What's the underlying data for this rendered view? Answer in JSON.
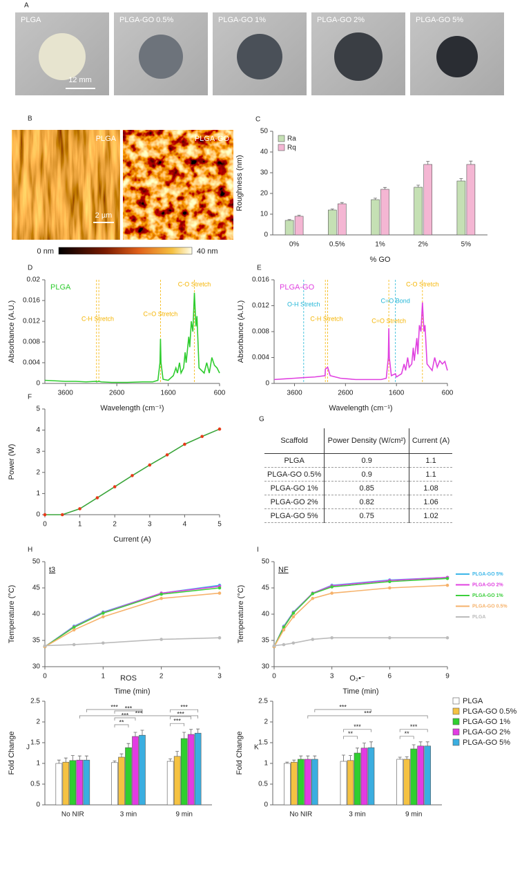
{
  "photos": {
    "panel": "A",
    "labels": [
      "PLGA",
      "PLGA-GO 0.5%",
      "PLGA-GO 1%",
      "PLGA-GO 2%",
      "PLGA-GO 5%"
    ],
    "scale": "12 mm"
  },
  "afm": {
    "panel": "B",
    "labels": [
      "PLGA",
      "PLGA-GO"
    ],
    "scale": "2 µm",
    "colorbar": [
      "0 nm",
      "40 nm"
    ]
  },
  "table": {
    "panel": "G",
    "header": [
      "Scaffold",
      "Power Density (W/cm²)",
      "Current (A)"
    ],
    "rows": [
      [
        "PLGA",
        0.9,
        1.1
      ],
      [
        "PLGA-GO 0.5%",
        0.9,
        1.1
      ],
      [
        "PLGA-GO 1%",
        0.85,
        1.08
      ],
      [
        "PLGA-GO 2%",
        0.82,
        1.06
      ],
      [
        "PLGA-GO 5%",
        0.75,
        1.02
      ]
    ]
  },
  "chart_data": [
    {
      "panel": "C",
      "type": "bar",
      "categories": [
        "0%",
        "0.5%",
        "1%",
        "2%",
        "5%"
      ],
      "series": [
        {
          "name": "Ra",
          "color": "#c5e0b4",
          "values": [
            7,
            12,
            17,
            23,
            26
          ],
          "errors": [
            0.4,
            0.5,
            0.7,
            1,
            1.2
          ]
        },
        {
          "name": "Rq",
          "color": "#f4b6d3",
          "values": [
            9,
            15,
            22,
            34,
            34
          ],
          "errors": [
            0.5,
            0.6,
            0.9,
            1.5,
            1.6
          ]
        }
      ],
      "ylim": [
        0,
        50
      ],
      "yticks": [
        0,
        10,
        20,
        30,
        40,
        50
      ],
      "x_label": "% GO",
      "y_label": "Roughness (nm)",
      "legend": "top-left"
    },
    {
      "panel": "D",
      "type": "line",
      "x": [
        4000,
        3800,
        3600,
        3400,
        3200,
        3000,
        2995,
        2950,
        2900,
        2700,
        2400,
        2100,
        1900,
        1800,
        1760,
        1750,
        1740,
        1700,
        1600,
        1500,
        1450,
        1420,
        1380,
        1350,
        1300,
        1270,
        1250,
        1200,
        1180,
        1150,
        1120,
        1090,
        1060,
        1040,
        1000,
        950,
        900,
        850,
        800,
        750,
        700,
        650,
        600
      ],
      "series": [
        {
          "name": "PLGA",
          "color": "#2ecc2e",
          "values": [
            0.0006,
            0.0005,
            0.0004,
            0.0004,
            0.0003,
            0.0004,
            0.0003,
            0.0004,
            0.0003,
            0.0002,
            0.0002,
            0.0003,
            0.0003,
            0.0006,
            0.004,
            0.0086,
            0.004,
            0.0008,
            0.0006,
            0.0015,
            0.003,
            0.002,
            0.004,
            0.002,
            0.003,
            0.006,
            0.004,
            0.009,
            0.007,
            0.012,
            0.01,
            0.0175,
            0.011,
            0.013,
            0.003,
            0.0025,
            0.002,
            0.004,
            0.002,
            0.005,
            0.0035,
            0.003,
            0.002
          ]
        }
      ],
      "xlim": [
        4000,
        600
      ],
      "xticks": [
        3600,
        2600,
        1600,
        600
      ],
      "ylim": [
        0,
        0.02
      ],
      "yticks": [
        0,
        0.004,
        0.008,
        0.012,
        0.016,
        0.02
      ],
      "x_label": "Wavelength (cm⁻¹)",
      "y_label": "Absorbance (A.U.)",
      "legend": "top-left",
      "annotations": [
        {
          "text": "C-H Stretch",
          "x": [
            2995,
            2950
          ],
          "color": "#f5b400"
        },
        {
          "text": "C=O Stretch",
          "x": [
            1750
          ],
          "color": "#f5b400"
        },
        {
          "text": "C-O Stretch",
          "x": [
            1090
          ],
          "color": "#f5b400"
        }
      ]
    },
    {
      "panel": "E",
      "type": "line",
      "x": [
        4000,
        3800,
        3600,
        3420,
        3200,
        3000,
        2995,
        2950,
        2900,
        2700,
        2400,
        2100,
        1900,
        1800,
        1760,
        1750,
        1740,
        1700,
        1620,
        1600,
        1500,
        1450,
        1420,
        1380,
        1350,
        1300,
        1270,
        1250,
        1200,
        1180,
        1150,
        1120,
        1090,
        1060,
        1040,
        1000,
        950,
        900,
        850,
        800,
        750,
        700,
        650,
        600
      ],
      "series": [
        {
          "name": "PLGA-GO",
          "color": "#e040e0",
          "values": [
            0.0006,
            0.0007,
            0.0008,
            0.0009,
            0.001,
            0.0012,
            0.0022,
            0.0025,
            0.0012,
            0.0008,
            0.0006,
            0.0006,
            0.0006,
            0.0008,
            0.004,
            0.0085,
            0.004,
            0.0012,
            0.0015,
            0.001,
            0.0015,
            0.003,
            0.002,
            0.004,
            0.0025,
            0.003,
            0.0055,
            0.0035,
            0.007,
            0.0045,
            0.009,
            0.008,
            0.0125,
            0.008,
            0.009,
            0.003,
            0.0025,
            0.002,
            0.004,
            0.0025,
            0.0035,
            0.003,
            0.0034,
            0.002
          ]
        }
      ],
      "xlim": [
        4000,
        600
      ],
      "xticks": [
        3600,
        2600,
        1600,
        600
      ],
      "ylim": [
        0,
        0.016
      ],
      "yticks": [
        0,
        0.004,
        0.008,
        0.012,
        0.016
      ],
      "x_label": "Wavelength (cm⁻¹)",
      "y_label": "Absorbance (A.U.)",
      "legend": "top-left",
      "annotations": [
        {
          "text": "O-H Stretch",
          "x": [
            3420
          ],
          "color": "#1fb5d6"
        },
        {
          "text": "C-H Stretch",
          "x": [
            2995,
            2950
          ],
          "color": "#f5b400"
        },
        {
          "text": "C=O Stretch",
          "x": [
            1750
          ],
          "color": "#f5b400"
        },
        {
          "text": "C=O Bond",
          "x": [
            1620
          ],
          "color": "#1fb5d6"
        },
        {
          "text": "C-O Stretch",
          "x": [
            1090
          ],
          "color": "#f5b400"
        }
      ]
    },
    {
      "panel": "F",
      "type": "line",
      "x": [
        0,
        0.5,
        1,
        1.5,
        2,
        2.5,
        3,
        3.5,
        4,
        4.5,
        5
      ],
      "series": [
        {
          "color": "#3aa53a",
          "marker_color": "#e83a1a",
          "values": [
            0,
            0,
            0.28,
            0.8,
            1.32,
            1.85,
            2.35,
            2.83,
            3.33,
            3.7,
            4.05
          ]
        }
      ],
      "markers": true,
      "xlim": [
        0,
        5
      ],
      "xticks": [
        0,
        1,
        2,
        3,
        4,
        5
      ],
      "ylim": [
        0,
        5
      ],
      "yticks": [
        0,
        1,
        2,
        3,
        4,
        5
      ],
      "x_label": "Current (A)",
      "y_label": "Power (W)"
    },
    {
      "panel": "H",
      "type": "line",
      "tag": "t3",
      "x": [
        0,
        0.5,
        1,
        2,
        3
      ],
      "series": [
        {
          "name": "PLGA-GO 5%",
          "color": "#3bb6e8",
          "values": [
            33.8,
            37.7,
            40.4,
            44,
            45.5
          ]
        },
        {
          "name": "PLGA-GO 2%",
          "color": "#e040e0",
          "values": [
            33.8,
            37.6,
            40.3,
            44,
            45.3
          ]
        },
        {
          "name": "PLGA-GO 1%",
          "color": "#3ccf3c",
          "values": [
            33.8,
            37.5,
            40.2,
            43.8,
            45
          ]
        },
        {
          "name": "PLGA-GO 0.5%",
          "color": "#f6b26b",
          "values": [
            33.8,
            37,
            39.5,
            43,
            44
          ]
        },
        {
          "name": "PLGA",
          "color": "#bbbbbb",
          "values": [
            34,
            34.2,
            34.5,
            35.2,
            35.5
          ]
        }
      ],
      "markers": true,
      "xlim": [
        0,
        3
      ],
      "xticks": [
        0,
        1,
        2,
        3
      ],
      "ylim": [
        30,
        50
      ],
      "yticks": [
        30,
        35,
        40,
        45,
        50
      ],
      "x_label": "Time (min)",
      "y_label": "Temperature (°C)"
    },
    {
      "panel": "I",
      "type": "line",
      "tag": "NF",
      "x": [
        0,
        0.5,
        1,
        2,
        3,
        6,
        9
      ],
      "series": [
        {
          "name": "PLGA-GO 5%",
          "color": "#3bb6e8",
          "values": [
            33.8,
            37.7,
            40.4,
            44,
            45.5,
            46.5,
            47
          ]
        },
        {
          "name": "PLGA-GO 2%",
          "color": "#e040e0",
          "values": [
            33.8,
            37.6,
            40.3,
            44,
            45.4,
            46.4,
            47
          ]
        },
        {
          "name": "PLGA-GO 1%",
          "color": "#3ccf3c",
          "values": [
            33.8,
            37.5,
            40.2,
            43.9,
            45.2,
            46.2,
            46.8
          ]
        },
        {
          "name": "PLGA-GO 0.5%",
          "color": "#f6b26b",
          "values": [
            33.8,
            37,
            39.5,
            43,
            44,
            45,
            45.5
          ]
        },
        {
          "name": "PLGA",
          "color": "#bbbbbb",
          "values": [
            34,
            34.2,
            34.5,
            35.2,
            35.5,
            35.5,
            35.5
          ]
        }
      ],
      "markers": true,
      "xlim": [
        0,
        9
      ],
      "xticks": [
        0,
        3,
        6,
        9
      ],
      "ylim": [
        30,
        50
      ],
      "yticks": [
        30,
        35,
        40,
        45,
        50
      ],
      "x_label": "Time (min)",
      "y_label": "Temperature (°C)",
      "legend": "right"
    },
    {
      "panel": "J",
      "type": "bar",
      "title": "ROS",
      "categories": [
        "No NIR",
        "3 min",
        "9 min"
      ],
      "series": [
        {
          "name": "PLGA",
          "color": "#ffffff",
          "values": [
            1,
            1.02,
            1.05
          ],
          "errors": [
            0.08,
            0.04,
            0.06
          ]
        },
        {
          "name": "PLGA-GO 0.5%",
          "color": "#f5c242",
          "values": [
            1.03,
            1.15,
            1.17
          ],
          "errors": [
            0.1,
            0.08,
            0.12
          ]
        },
        {
          "name": "PLGA-GO 1%",
          "color": "#2fcf2f",
          "values": [
            1.07,
            1.38,
            1.6
          ],
          "errors": [
            0.12,
            0.1,
            0.15
          ]
        },
        {
          "name": "PLGA-GO 2%",
          "color": "#e23be2",
          "values": [
            1.08,
            1.65,
            1.7
          ],
          "errors": [
            0.1,
            0.1,
            0.12
          ]
        },
        {
          "name": "PLGA-GO 5%",
          "color": "#3aaee0",
          "values": [
            1.08,
            1.68,
            1.73
          ],
          "errors": [
            0.1,
            0.12,
            0.1
          ]
        }
      ],
      "ylim": [
        0,
        2.5
      ],
      "yticks": [
        0,
        0.5,
        1,
        1.5,
        2,
        2.5
      ],
      "y_label": "Fold Change",
      "brackets": [
        {
          "label": "***",
          "from": [
            0,
            4
          ],
          "to": [
            1,
            4
          ]
        },
        {
          "label": "***",
          "from": [
            0,
            3
          ],
          "to": [
            2,
            4
          ]
        },
        {
          "label": "**",
          "from": [
            1,
            0
          ],
          "to": [
            1,
            2
          ]
        },
        {
          "label": "***",
          "from": [
            1,
            0
          ],
          "to": [
            1,
            3
          ]
        },
        {
          "label": "***",
          "from": [
            1,
            0
          ],
          "to": [
            1,
            4
          ]
        },
        {
          "label": "***",
          "from": [
            2,
            0
          ],
          "to": [
            2,
            2
          ]
        },
        {
          "label": "***",
          "from": [
            2,
            0
          ],
          "to": [
            2,
            3
          ]
        },
        {
          "label": "***",
          "from": [
            2,
            0
          ],
          "to": [
            2,
            4
          ]
        }
      ]
    },
    {
      "panel": "K",
      "type": "bar",
      "title": "O₂•⁻",
      "categories": [
        "No NIR",
        "3 min",
        "9 min"
      ],
      "series": [
        {
          "name": "PLGA",
          "color": "#ffffff",
          "values": [
            1,
            1.05,
            1.1
          ],
          "errors": [
            0.03,
            0.15,
            0.05
          ]
        },
        {
          "name": "PLGA-GO 0.5%",
          "color": "#f5c242",
          "values": [
            1.03,
            1.07,
            1.1
          ],
          "errors": [
            0.05,
            0.12,
            0.06
          ]
        },
        {
          "name": "PLGA-GO 1%",
          "color": "#2fcf2f",
          "values": [
            1.1,
            1.25,
            1.35
          ],
          "errors": [
            0.08,
            0.12,
            0.1
          ]
        },
        {
          "name": "PLGA-GO 2%",
          "color": "#e23be2",
          "values": [
            1.1,
            1.37,
            1.42
          ],
          "errors": [
            0.08,
            0.12,
            0.1
          ]
        },
        {
          "name": "PLGA-GO 5%",
          "color": "#3aaee0",
          "values": [
            1.1,
            1.38,
            1.42
          ],
          "errors": [
            0.08,
            0.14,
            0.1
          ]
        }
      ],
      "ylim": [
        0,
        2.5
      ],
      "yticks": [
        0,
        0.5,
        1,
        1.5,
        2,
        2.5
      ],
      "y_label": "Fold Change",
      "legend": "right",
      "brackets": [
        {
          "label": "***",
          "from": [
            0,
            4
          ],
          "to": [
            1,
            4
          ]
        },
        {
          "label": "***",
          "from": [
            0,
            3
          ],
          "to": [
            2,
            4
          ]
        },
        {
          "label": "**",
          "from": [
            1,
            0
          ],
          "to": [
            1,
            2
          ]
        },
        {
          "label": "***",
          "from": [
            1,
            0
          ],
          "to": [
            1,
            4
          ]
        },
        {
          "label": "**",
          "from": [
            2,
            0
          ],
          "to": [
            2,
            2
          ]
        },
        {
          "label": "***",
          "from": [
            2,
            0
          ],
          "to": [
            2,
            4
          ]
        }
      ]
    }
  ]
}
